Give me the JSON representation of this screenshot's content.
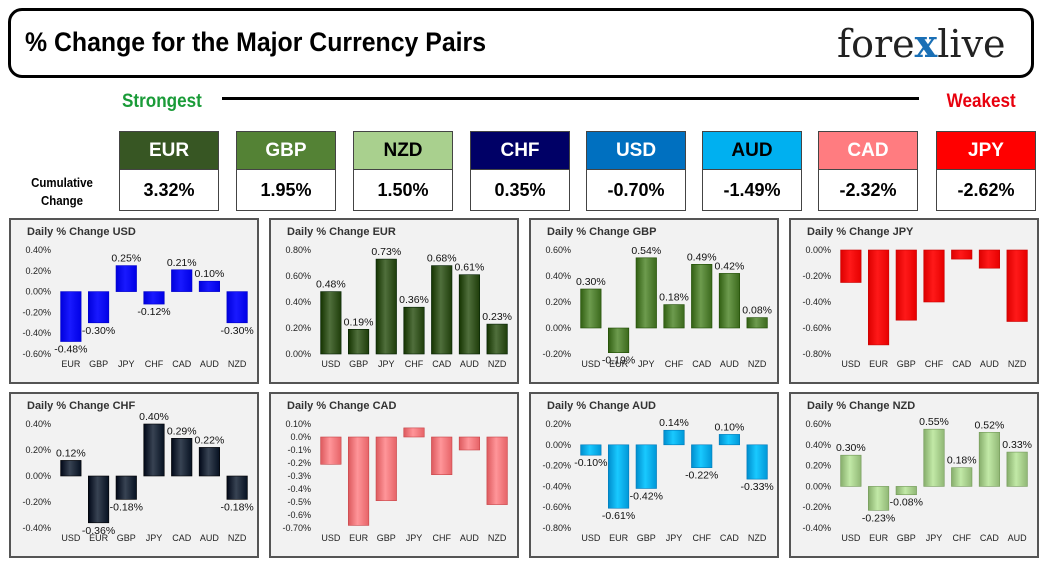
{
  "header": {
    "title": "% Change for the Major Currency Pairs",
    "logo_text_a": "fore",
    "logo_text_x": "x",
    "logo_text_b": "live"
  },
  "strength": {
    "strongest": "Strongest",
    "weakest": "Weakest"
  },
  "cumulative_label_line1": "Cumulative",
  "cumulative_label_line2": "Change",
  "currencies": [
    {
      "code": "EUR",
      "value": "3.32%",
      "bg": "#375623",
      "fg": "#ffffff"
    },
    {
      "code": "GBP",
      "value": "1.95%",
      "bg": "#548235",
      "fg": "#ffffff"
    },
    {
      "code": "NZD",
      "value": "1.50%",
      "bg": "#a9d08e",
      "fg": "#000000"
    },
    {
      "code": "CHF",
      "value": "0.35%",
      "bg": "#000066",
      "fg": "#ffffff"
    },
    {
      "code": "USD",
      "value": "-0.70%",
      "bg": "#0070c0",
      "fg": "#ffffff"
    },
    {
      "code": "AUD",
      "value": "-1.49%",
      "bg": "#00b0f0",
      "fg": "#000000"
    },
    {
      "code": "CAD",
      "value": "-2.32%",
      "bg": "#ff7c80",
      "fg": "#ffffff"
    },
    {
      "code": "JPY",
      "value": "-2.62%",
      "bg": "#ff0000",
      "fg": "#ffffff"
    }
  ],
  "chart_data": [
    {
      "type": "bar",
      "title": "Daily % Change USD",
      "categories": [
        "EUR",
        "GBP",
        "JPY",
        "CHF",
        "CAD",
        "AUD",
        "NZD"
      ],
      "values": [
        -0.48,
        -0.3,
        0.25,
        -0.12,
        0.21,
        0.1,
        -0.3
      ],
      "labels": [
        "-0.48%",
        "-0.30%",
        "0.25%",
        "-0.12%",
        "0.21%",
        "0.10%",
        "-0.30%"
      ],
      "yticks": [
        0.4,
        0.2,
        0.0,
        -0.2,
        -0.4,
        -0.6
      ],
      "ytick_labels": [
        "0.40%",
        "0.20%",
        "0.00%",
        "-0.20%",
        "-0.40%",
        "-0.60%"
      ],
      "ylim": [
        -0.6,
        0.4
      ],
      "color": "#0000ff"
    },
    {
      "type": "bar",
      "title": "Daily % Change EUR",
      "categories": [
        "USD",
        "GBP",
        "JPY",
        "CHF",
        "CAD",
        "AUD",
        "NZD"
      ],
      "values": [
        0.48,
        0.19,
        0.73,
        0.36,
        0.68,
        0.61,
        0.23
      ],
      "labels": [
        "0.48%",
        "0.19%",
        "0.73%",
        "0.36%",
        "0.68%",
        "0.61%",
        "0.23%"
      ],
      "yticks": [
        0.8,
        0.6,
        0.4,
        0.2,
        0.0
      ],
      "ytick_labels": [
        "0.80%",
        "0.60%",
        "0.40%",
        "0.20%",
        "0.00%"
      ],
      "ylim": [
        0.0,
        0.8
      ],
      "color": "#375623"
    },
    {
      "type": "bar",
      "title": "Daily % Change GBP",
      "categories": [
        "USD",
        "EUR",
        "JPY",
        "CHF",
        "CAD",
        "AUD",
        "NZD"
      ],
      "values": [
        0.3,
        -0.19,
        0.54,
        0.18,
        0.49,
        0.42,
        0.08
      ],
      "labels": [
        "0.30%",
        "-0.19%",
        "0.54%",
        "0.18%",
        "0.49%",
        "0.42%",
        "0.08%"
      ],
      "yticks": [
        0.6,
        0.4,
        0.2,
        0.0,
        -0.2
      ],
      "ytick_labels": [
        "0.60%",
        "0.40%",
        "0.20%",
        "0.00%",
        "-0.20%"
      ],
      "ylim": [
        -0.2,
        0.6
      ],
      "color": "#548235"
    },
    {
      "type": "bar",
      "title": "Daily % Change JPY",
      "categories": [
        "USD",
        "EUR",
        "GBP",
        "CHF",
        "CAD",
        "AUD",
        "NZD"
      ],
      "values": [
        -0.25,
        -0.73,
        -0.54,
        -0.4,
        -0.07,
        -0.14,
        -0.55
      ],
      "labels": [
        "",
        "",
        "",
        "",
        "",
        "",
        ""
      ],
      "yticks": [
        0.0,
        -0.2,
        -0.4,
        -0.6,
        -0.8
      ],
      "ytick_labels": [
        "0.00%",
        "-0.20%",
        "-0.40%",
        "-0.60%",
        "-0.80%"
      ],
      "ylim": [
        -0.8,
        0.0
      ],
      "color": "#ff0000"
    },
    {
      "type": "bar",
      "title": "Daily % Change CHF",
      "categories": [
        "USD",
        "EUR",
        "GBP",
        "JPY",
        "CAD",
        "AUD",
        "NZD"
      ],
      "values": [
        0.12,
        -0.36,
        -0.18,
        0.4,
        0.29,
        0.22,
        -0.18
      ],
      "labels": [
        "0.12%",
        "-0.36%",
        "-0.18%",
        "0.40%",
        "0.29%",
        "0.22%",
        "-0.18%"
      ],
      "yticks": [
        0.4,
        0.2,
        0.0,
        -0.2,
        -0.4
      ],
      "ytick_labels": [
        "0.40%",
        "0.20%",
        "0.00%",
        "-0.20%",
        "-0.40%"
      ],
      "ylim": [
        -0.4,
        0.4
      ],
      "color": "#1f2a3a"
    },
    {
      "type": "bar",
      "title": "Daily % Change CAD",
      "categories": [
        "USD",
        "EUR",
        "GBP",
        "JPY",
        "CHF",
        "AUD",
        "NZD"
      ],
      "values": [
        -0.21,
        -0.68,
        -0.49,
        0.07,
        -0.29,
        -0.1,
        -0.52
      ],
      "labels": [
        "",
        "",
        "",
        "",
        "",
        "",
        ""
      ],
      "yticks": [
        0.1,
        0.0,
        -0.1,
        -0.2,
        -0.3,
        -0.4,
        -0.5,
        -0.6,
        -0.7
      ],
      "ytick_labels": [
        "0.10%",
        "0.0%",
        "-0.1%",
        "-0.2%",
        "-0.3%",
        "-0.4%",
        "-0.5%",
        "-0.6%",
        "-0.70%"
      ],
      "ylim": [
        -0.7,
        0.1
      ],
      "color": "#ff7c80"
    },
    {
      "type": "bar",
      "title": "Daily % Change AUD",
      "categories": [
        "USD",
        "EUR",
        "GBP",
        "JPY",
        "CHF",
        "CAD",
        "NZD"
      ],
      "values": [
        -0.1,
        -0.61,
        -0.42,
        0.14,
        -0.22,
        0.1,
        -0.33
      ],
      "labels": [
        "-0.10%",
        "-0.61%",
        "-0.42%",
        "0.14%",
        "-0.22%",
        "0.10%",
        "-0.33%"
      ],
      "yticks": [
        0.2,
        0.0,
        -0.2,
        -0.4,
        -0.6,
        -0.8
      ],
      "ytick_labels": [
        "0.20%",
        "0.00%",
        "-0.20%",
        "-0.40%",
        "-0.60%",
        "-0.80%"
      ],
      "ylim": [
        -0.8,
        0.2
      ],
      "color": "#00b0f0"
    },
    {
      "type": "bar",
      "title": "Daily % Change NZD",
      "categories": [
        "USD",
        "EUR",
        "GBP",
        "JPY",
        "CHF",
        "CAD",
        "AUD"
      ],
      "values": [
        0.3,
        -0.23,
        -0.08,
        0.55,
        0.18,
        0.52,
        0.33
      ],
      "labels": [
        "0.30%",
        "-0.23%",
        "-0.08%",
        "0.55%",
        "0.18%",
        "0.52%",
        "0.33%"
      ],
      "yticks": [
        0.6,
        0.4,
        0.2,
        0.0,
        -0.2,
        -0.4
      ],
      "ytick_labels": [
        "0.60%",
        "0.40%",
        "0.20%",
        "0.00%",
        "-0.20%",
        "-0.40%"
      ],
      "ylim": [
        -0.4,
        0.6
      ],
      "color": "#a9d08e"
    }
  ]
}
